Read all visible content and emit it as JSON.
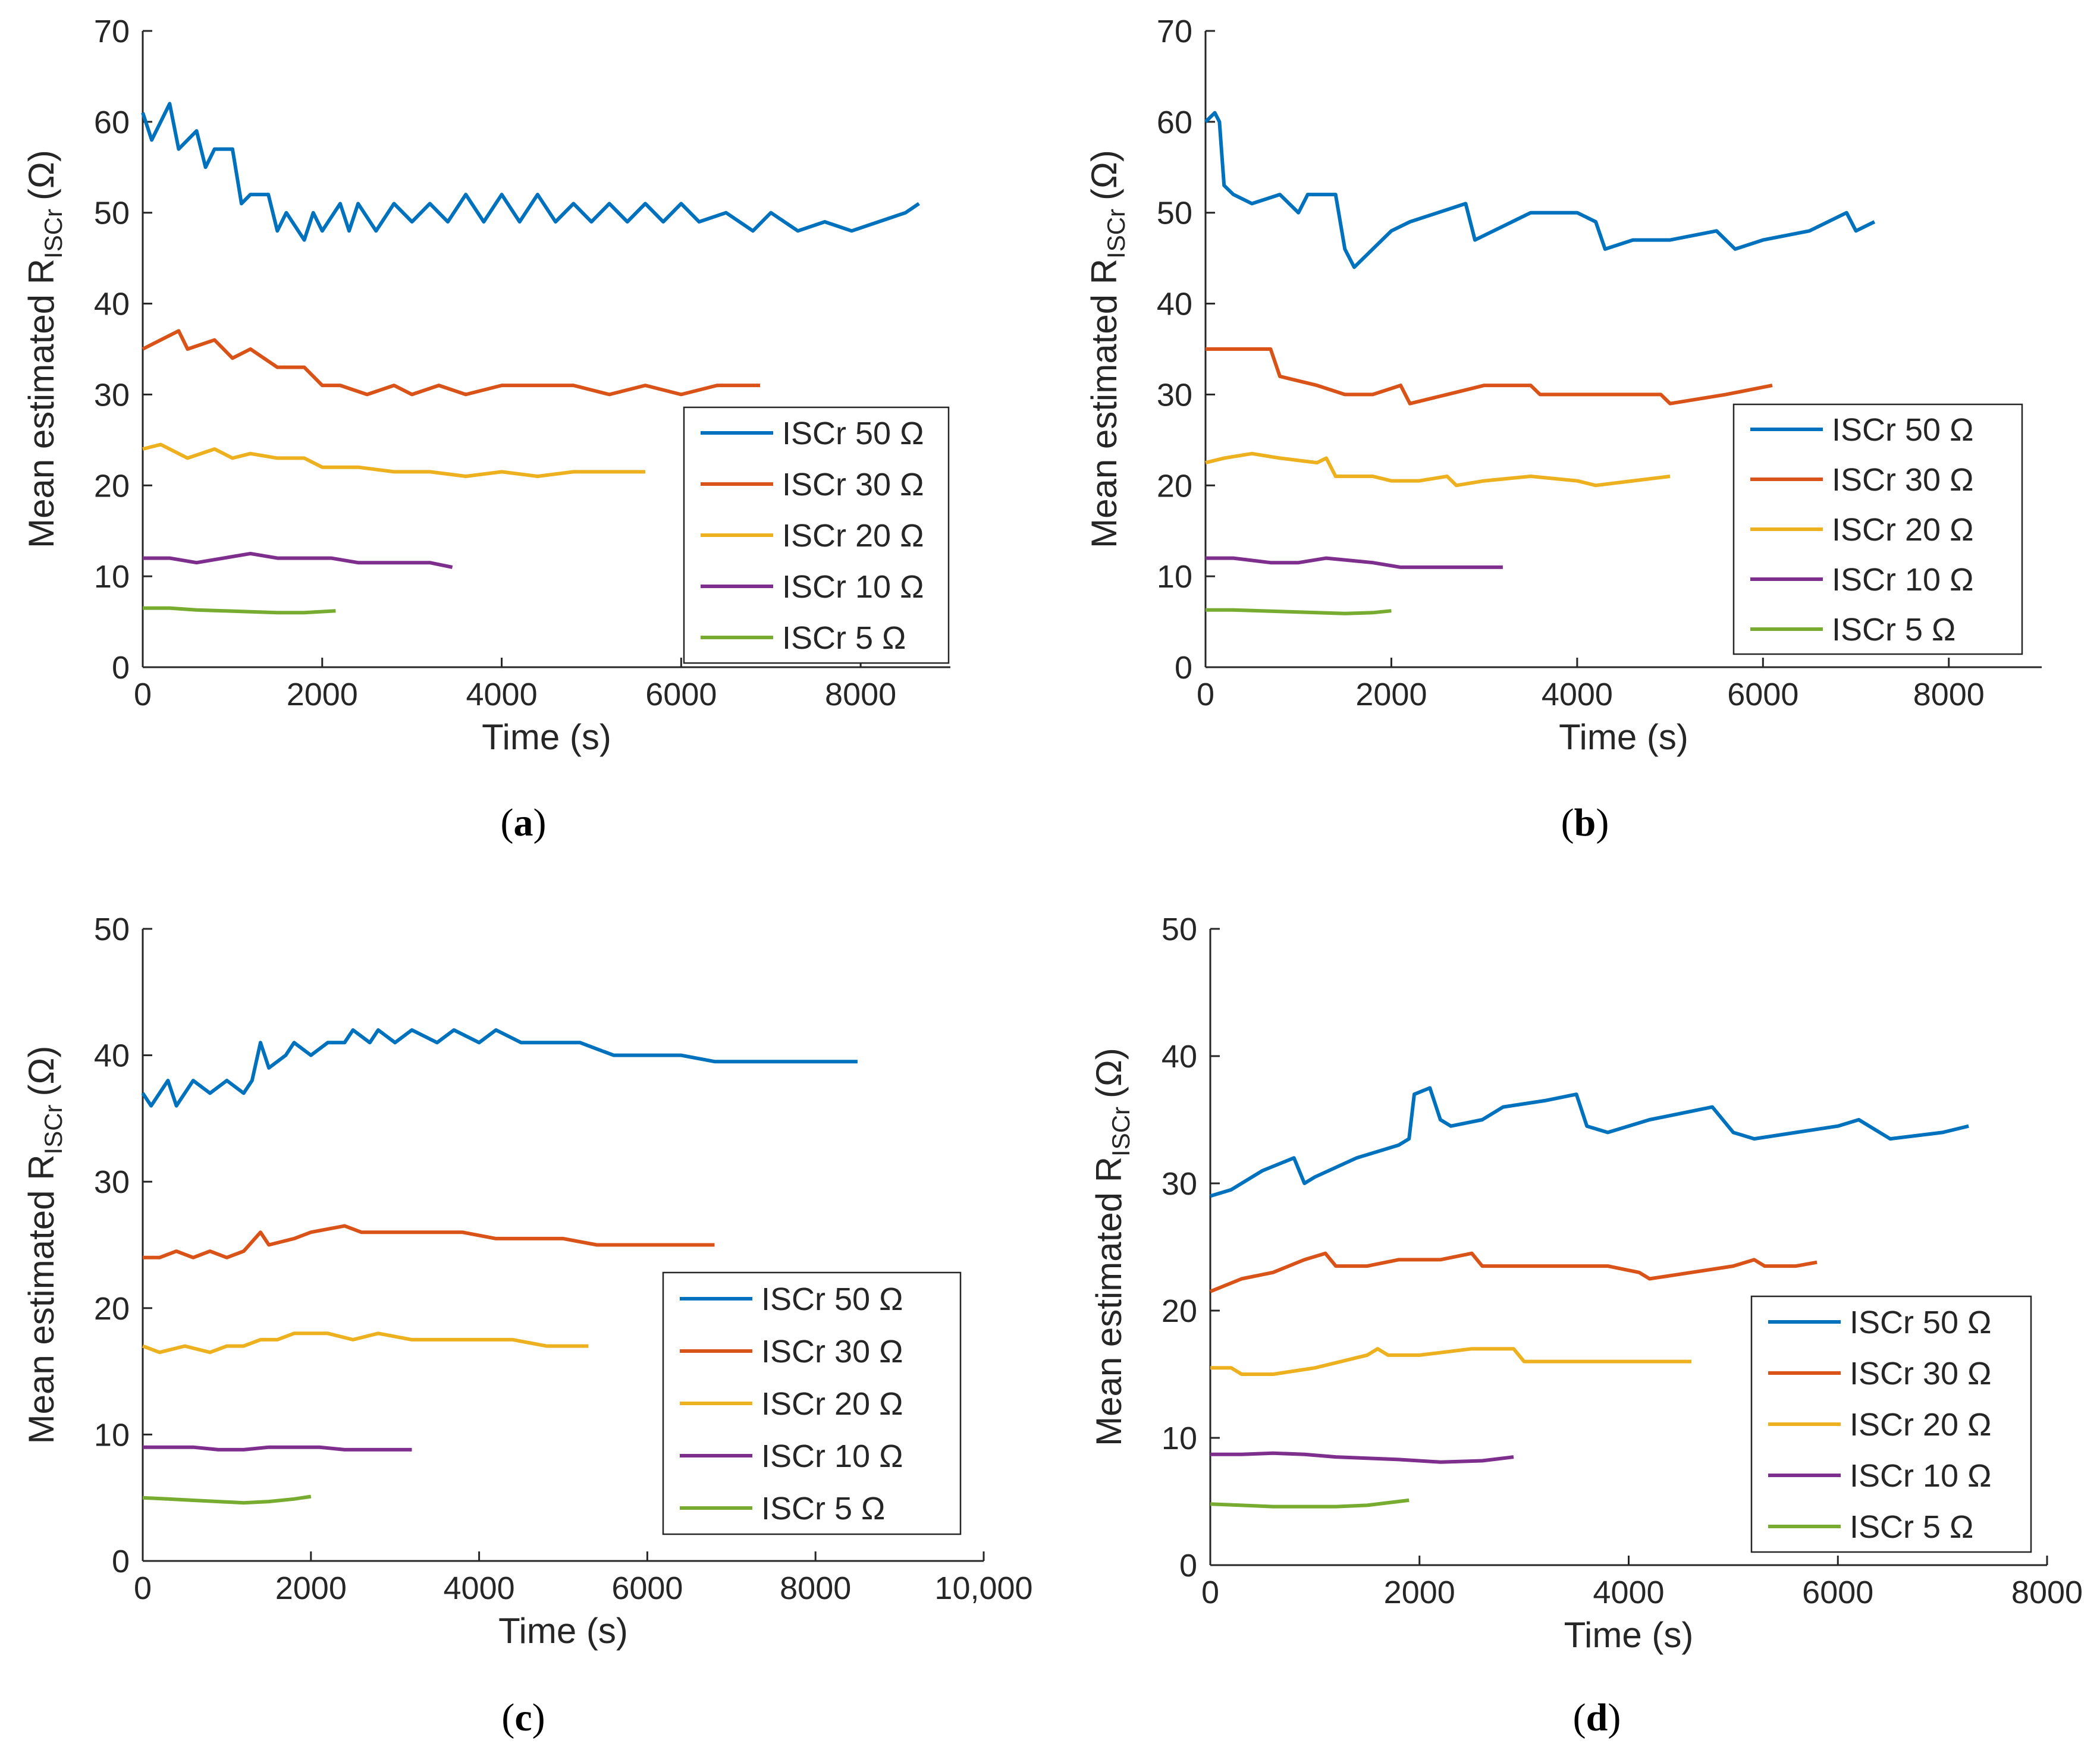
{
  "colors": {
    "s50": "#0072BD",
    "s30": "#D95319",
    "s20": "#EDB120",
    "s10": "#7E2F8E",
    "s5": "#77AC30",
    "axis": "#262626"
  },
  "chart_data": [
    {
      "id": "a",
      "type": "line",
      "caption_letter": "a",
      "xlabel": "Time (s)",
      "ylabel": "Mean estimated R",
      "ylabel_sub": "ISCr",
      "ylabel_unit": "(Ω)",
      "xlim": [
        0,
        9000
      ],
      "ylim": [
        0,
        70
      ],
      "xticks": [
        0,
        2000,
        4000,
        6000,
        8000
      ],
      "xtick_labels": [
        "0",
        "2000",
        "4000",
        "6000",
        "8000"
      ],
      "yticks": [
        0,
        10,
        20,
        30,
        40,
        50,
        60,
        70
      ],
      "ytick_labels": [
        "0",
        "10",
        "20",
        "30",
        "40",
        "50",
        "60",
        "70"
      ],
      "legend_position": "right",
      "series": [
        {
          "name": "ISCr 50 Ω",
          "color_key": "s50",
          "x": [
            0,
            100,
            300,
            400,
            600,
            700,
            800,
            1000,
            1100,
            1200,
            1400,
            1500,
            1600,
            1800,
            1900,
            2000,
            2200,
            2300,
            2400,
            2600,
            2800,
            3000,
            3200,
            3400,
            3600,
            3800,
            4000,
            4200,
            4400,
            4600,
            4800,
            5000,
            5200,
            5400,
            5600,
            5800,
            6000,
            6200,
            6500,
            6800,
            7000,
            7300,
            7600,
            7900,
            8200,
            8500,
            8650
          ],
          "y": [
            61,
            58,
            62,
            57,
            59,
            55,
            57,
            57,
            51,
            52,
            52,
            48,
            50,
            47,
            50,
            48,
            51,
            48,
            51,
            48,
            51,
            49,
            51,
            49,
            52,
            49,
            52,
            49,
            52,
            49,
            51,
            49,
            51,
            49,
            51,
            49,
            51,
            49,
            50,
            48,
            50,
            48,
            49,
            48,
            49,
            50,
            51
          ]
        },
        {
          "name": "ISCr 30 Ω",
          "color_key": "s30",
          "x": [
            0,
            200,
            400,
            500,
            800,
            1000,
            1200,
            1500,
            1800,
            2000,
            2200,
            2500,
            2800,
            3000,
            3300,
            3600,
            4000,
            4400,
            4800,
            5200,
            5600,
            6000,
            6400,
            6880
          ],
          "y": [
            35,
            36,
            37,
            35,
            36,
            34,
            35,
            33,
            33,
            31,
            31,
            30,
            31,
            30,
            31,
            30,
            31,
            31,
            31,
            30,
            31,
            30,
            31,
            31
          ]
        },
        {
          "name": "ISCr 20 Ω",
          "color_key": "s20",
          "x": [
            0,
            200,
            400,
            500,
            800,
            1000,
            1200,
            1500,
            1800,
            2000,
            2400,
            2800,
            3200,
            3600,
            4000,
            4400,
            4800,
            5200,
            5600
          ],
          "y": [
            24,
            24.5,
            23.5,
            23,
            24,
            23,
            23.5,
            23,
            23,
            22,
            22,
            21.5,
            21.5,
            21,
            21.5,
            21,
            21.5,
            21.5,
            21.5
          ]
        },
        {
          "name": "ISCr 10 Ω",
          "color_key": "s10",
          "x": [
            0,
            300,
            600,
            900,
            1200,
            1500,
            1800,
            2100,
            2400,
            2800,
            3200,
            3450
          ],
          "y": [
            12,
            12,
            11.5,
            12,
            12.5,
            12,
            12,
            12,
            11.5,
            11.5,
            11.5,
            11
          ]
        },
        {
          "name": "ISCr 5 Ω",
          "color_key": "s5",
          "x": [
            0,
            300,
            600,
            900,
            1200,
            1500,
            1800,
            2150
          ],
          "y": [
            6.5,
            6.5,
            6.3,
            6.2,
            6.1,
            6,
            6,
            6.2
          ]
        }
      ]
    },
    {
      "id": "b",
      "type": "line",
      "caption_letter": "b",
      "xlabel": "Time (s)",
      "ylabel": "Mean estimated R",
      "ylabel_sub": "ISCr",
      "ylabel_unit": "(Ω)",
      "xlim": [
        0,
        9000
      ],
      "ylim": [
        0,
        70
      ],
      "xticks": [
        0,
        2000,
        4000,
        6000,
        8000
      ],
      "xtick_labels": [
        "0",
        "2000",
        "4000",
        "6000",
        "8000"
      ],
      "yticks": [
        0,
        10,
        20,
        30,
        40,
        50,
        60,
        70
      ],
      "ytick_labels": [
        "0",
        "10",
        "20",
        "30",
        "40",
        "50",
        "60",
        "70"
      ],
      "legend_position": "right",
      "series": [
        {
          "name": "ISCr 50 Ω",
          "color_key": "s50",
          "x": [
            0,
            100,
            150,
            200,
            300,
            500,
            800,
            1000,
            1100,
            1400,
            1500,
            1600,
            2000,
            2200,
            2500,
            2800,
            2900,
            3300,
            3500,
            4000,
            4200,
            4300,
            4600,
            5000,
            5500,
            5700,
            6000,
            6500,
            6900,
            7000,
            7200
          ],
          "y": [
            60,
            61,
            60,
            53,
            52,
            51,
            52,
            50,
            52,
            52,
            46,
            44,
            48,
            49,
            50,
            51,
            47,
            49,
            50,
            50,
            49,
            46,
            47,
            47,
            48,
            46,
            47,
            48,
            50,
            48,
            49
          ]
        },
        {
          "name": "ISCr 30 Ω",
          "color_key": "s30",
          "x": [
            0,
            300,
            700,
            800,
            1200,
            1500,
            1800,
            2100,
            2200,
            2600,
            3000,
            3400,
            3500,
            3600,
            4000,
            4400,
            4900,
            5000,
            5600,
            6100
          ],
          "y": [
            35,
            35,
            35,
            32,
            31,
            30,
            30,
            31,
            29,
            30,
            31,
            31,
            31,
            30,
            30,
            30,
            30,
            29,
            30,
            31
          ]
        },
        {
          "name": "ISCr 20 Ω",
          "color_key": "s20",
          "x": [
            0,
            200,
            500,
            800,
            1200,
            1300,
            1400,
            1800,
            2000,
            2300,
            2600,
            2700,
            3000,
            3500,
            4000,
            4200,
            4600,
            5000
          ],
          "y": [
            22.5,
            23,
            23.5,
            23,
            22.5,
            23,
            21,
            21,
            20.5,
            20.5,
            21,
            20,
            20.5,
            21,
            20.5,
            20,
            20.5,
            21
          ]
        },
        {
          "name": "ISCr 10 Ω",
          "color_key": "s10",
          "x": [
            0,
            300,
            700,
            1000,
            1300,
            1800,
            2100,
            2400,
            2800,
            3200
          ],
          "y": [
            12,
            12,
            11.5,
            11.5,
            12,
            11.5,
            11,
            11,
            11,
            11
          ]
        },
        {
          "name": "ISCr 5 Ω",
          "color_key": "s5",
          "x": [
            0,
            300,
            600,
            900,
            1200,
            1500,
            1800,
            2000
          ],
          "y": [
            6.3,
            6.3,
            6.2,
            6.1,
            6,
            5.9,
            6,
            6.2
          ]
        }
      ]
    },
    {
      "id": "c",
      "type": "line",
      "caption_letter": "c",
      "xlabel": "Time (s)",
      "ylabel": "Mean estimated R",
      "ylabel_sub": "ISCr",
      "ylabel_unit": "(Ω)",
      "xlim": [
        0,
        10000
      ],
      "ylim": [
        0,
        50
      ],
      "xticks": [
        0,
        2000,
        4000,
        6000,
        8000,
        10000
      ],
      "xtick_labels": [
        "0",
        "2000",
        "4000",
        "6000",
        "8000",
        "10,000"
      ],
      "yticks": [
        0,
        10,
        20,
        30,
        40,
        50
      ],
      "ytick_labels": [
        "0",
        "10",
        "20",
        "30",
        "40",
        "50"
      ],
      "legend_position": "right",
      "series": [
        {
          "name": "ISCr 50 Ω",
          "color_key": "s50",
          "x": [
            0,
            100,
            300,
            400,
            600,
            800,
            1000,
            1200,
            1300,
            1400,
            1500,
            1700,
            1800,
            2000,
            2200,
            2400,
            2500,
            2700,
            2800,
            3000,
            3200,
            3500,
            3700,
            4000,
            4200,
            4500,
            4800,
            5200,
            5600,
            6000,
            6400,
            6800,
            7200,
            7600,
            8000,
            8500
          ],
          "y": [
            37,
            36,
            38,
            36,
            38,
            37,
            38,
            37,
            38,
            41,
            39,
            40,
            41,
            40,
            41,
            41,
            42,
            41,
            42,
            41,
            42,
            41,
            42,
            41,
            42,
            41,
            41,
            41,
            40,
            40,
            40,
            39.5,
            39.5,
            39.5,
            39.5,
            39.5
          ]
        },
        {
          "name": "ISCr 30 Ω",
          "color_key": "s30",
          "x": [
            0,
            200,
            400,
            600,
            800,
            1000,
            1200,
            1400,
            1500,
            1800,
            2000,
            2400,
            2600,
            3000,
            3400,
            3800,
            4200,
            4600,
            5000,
            5400,
            5800,
            6200,
            6800
          ],
          "y": [
            24,
            24,
            24.5,
            24,
            24.5,
            24,
            24.5,
            26,
            25,
            25.5,
            26,
            26.5,
            26,
            26,
            26,
            26,
            25.5,
            25.5,
            25.5,
            25,
            25,
            25,
            25
          ]
        },
        {
          "name": "ISCr 20 Ω",
          "color_key": "s20",
          "x": [
            0,
            200,
            500,
            800,
            1000,
            1200,
            1400,
            1600,
            1800,
            2000,
            2200,
            2500,
            2800,
            3200,
            3600,
            4000,
            4400,
            4800,
            5300
          ],
          "y": [
            17,
            16.5,
            17,
            16.5,
            17,
            17,
            17.5,
            17.5,
            18,
            18,
            18,
            17.5,
            18,
            17.5,
            17.5,
            17.5,
            17.5,
            17,
            17
          ]
        },
        {
          "name": "ISCr 10 Ω",
          "color_key": "s10",
          "x": [
            0,
            300,
            600,
            900,
            1200,
            1500,
            1800,
            2100,
            2400,
            2800,
            3200
          ],
          "y": [
            9,
            9,
            9,
            8.8,
            8.8,
            9,
            9,
            9,
            8.8,
            8.8,
            8.8
          ]
        },
        {
          "name": "ISCr 5 Ω",
          "color_key": "s5",
          "x": [
            0,
            300,
            600,
            900,
            1200,
            1500,
            1800,
            2000
          ],
          "y": [
            5,
            4.9,
            4.8,
            4.7,
            4.6,
            4.7,
            4.9,
            5.1
          ]
        }
      ]
    },
    {
      "id": "d",
      "type": "line",
      "caption_letter": "d",
      "xlabel": "Time (s)",
      "ylabel": "Mean estimated R",
      "ylabel_sub": "ISCr",
      "ylabel_unit": "(Ω)",
      "xlim": [
        0,
        8000
      ],
      "ylim": [
        0,
        50
      ],
      "xticks": [
        0,
        2000,
        4000,
        6000,
        8000
      ],
      "xtick_labels": [
        "0",
        "2000",
        "4000",
        "6000",
        "8000"
      ],
      "yticks": [
        0,
        10,
        20,
        30,
        40,
        50
      ],
      "ytick_labels": [
        "0",
        "10",
        "20",
        "30",
        "40",
        "50"
      ],
      "legend_position": "right",
      "series": [
        {
          "name": "ISCr 50 Ω",
          "color_key": "s50",
          "x": [
            0,
            200,
            500,
            800,
            900,
            1000,
            1400,
            1800,
            1900,
            1950,
            2100,
            2200,
            2300,
            2600,
            2800,
            3200,
            3500,
            3600,
            3800,
            4200,
            4800,
            4900,
            5000,
            5200,
            5600,
            6000,
            6200,
            6500,
            7000,
            7250
          ],
          "y": [
            29,
            29.5,
            31,
            32,
            30,
            30.5,
            32,
            33,
            33.5,
            37,
            37.5,
            35,
            34.5,
            35,
            36,
            36.5,
            37,
            34.5,
            34,
            35,
            36,
            35,
            34,
            33.5,
            34,
            34.5,
            35,
            33.5,
            34,
            34.5
          ]
        },
        {
          "name": "ISCr 30 Ω",
          "color_key": "s30",
          "x": [
            0,
            300,
            600,
            900,
            1100,
            1200,
            1500,
            1800,
            2200,
            2500,
            2600,
            3000,
            3400,
            3800,
            4100,
            4200,
            4600,
            5000,
            5200,
            5300,
            5600,
            5800
          ],
          "y": [
            21.5,
            22.5,
            23,
            24,
            24.5,
            23.5,
            23.5,
            24,
            24,
            24.5,
            23.5,
            23.5,
            23.5,
            23.5,
            23,
            22.5,
            23,
            23.5,
            24,
            23.5,
            23.5,
            23.8
          ]
        },
        {
          "name": "ISCr 20 Ω",
          "color_key": "s20",
          "x": [
            0,
            200,
            300,
            600,
            1000,
            1500,
            1600,
            1700,
            2000,
            2500,
            2900,
            3000,
            3400,
            3800,
            4200,
            4600
          ],
          "y": [
            15.5,
            15.5,
            15,
            15,
            15.5,
            16.5,
            17,
            16.5,
            16.5,
            17,
            17,
            16,
            16,
            16,
            16,
            16
          ]
        },
        {
          "name": "ISCr 10 Ω",
          "color_key": "s10",
          "x": [
            0,
            300,
            600,
            900,
            1200,
            1500,
            1800,
            2200,
            2600,
            2900
          ],
          "y": [
            8.7,
            8.7,
            8.8,
            8.7,
            8.5,
            8.4,
            8.3,
            8.1,
            8.2,
            8.5
          ]
        },
        {
          "name": "ISCr 5 Ω",
          "color_key": "s5",
          "x": [
            0,
            300,
            600,
            900,
            1200,
            1500,
            1900
          ],
          "y": [
            4.8,
            4.7,
            4.6,
            4.6,
            4.6,
            4.7,
            5.1
          ]
        }
      ]
    }
  ]
}
